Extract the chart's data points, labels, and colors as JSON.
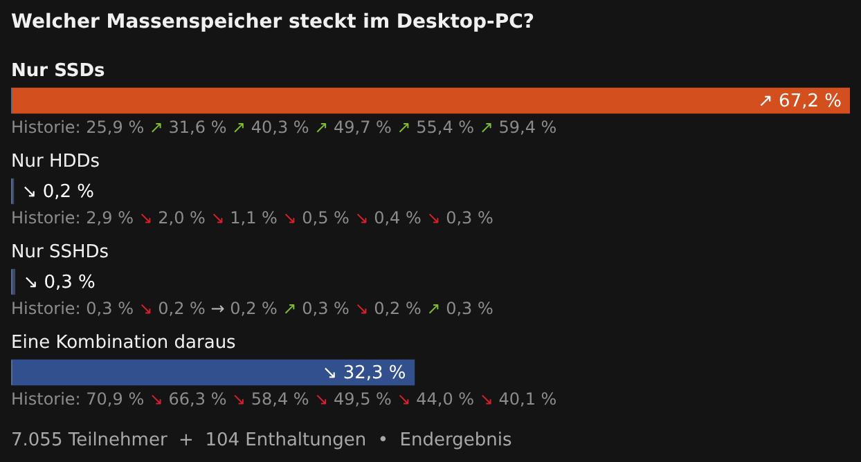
{
  "chart_data": {
    "type": "bar",
    "orientation": "horizontal",
    "title": "Welcher Massenspeicher steckt im Desktop-PC?",
    "categories": [
      "Nur SSDs",
      "Nur HDDs",
      "Nur SSHDs",
      "Eine Kombination daraus"
    ],
    "values": [
      67.2,
      0.2,
      0.3,
      32.3
    ],
    "colors": [
      "#d44f1e",
      "#3b4a6b",
      "#3b4a6b",
      "#324f8e"
    ],
    "value_labels": [
      "↗ 67,2 %",
      "↘ 0,2 %",
      "↘ 0,3 %",
      "↘ 32,3 %"
    ],
    "annotations": [
      "Historie: 25,9 % ↗ 31,6 % ↗ 40,3 % ↗ 49,7 % ↗ 55,4 % ↗ 59,4 %",
      "Historie: 2,9 % ↘ 2,0 % ↘ 1,1 % ↘ 0,5 % ↘ 0,4 % ↘ 0,3 %",
      "Historie: 0,3 % ↘ 0,2 % → 0,2 % ↗ 0,3 % ↘ 0,2 % ↗ 0,3 %",
      "Historie: 70,9 % ↘ 66,3 % ↘ 58,4 % ↘ 49,5 % ↘ 44,0 % ↘ 40,1 %",
      "7.055 Teilnehmer  +  104 Enthaltungen  •  Endergebnis"
    ],
    "legend": false
  }
}
